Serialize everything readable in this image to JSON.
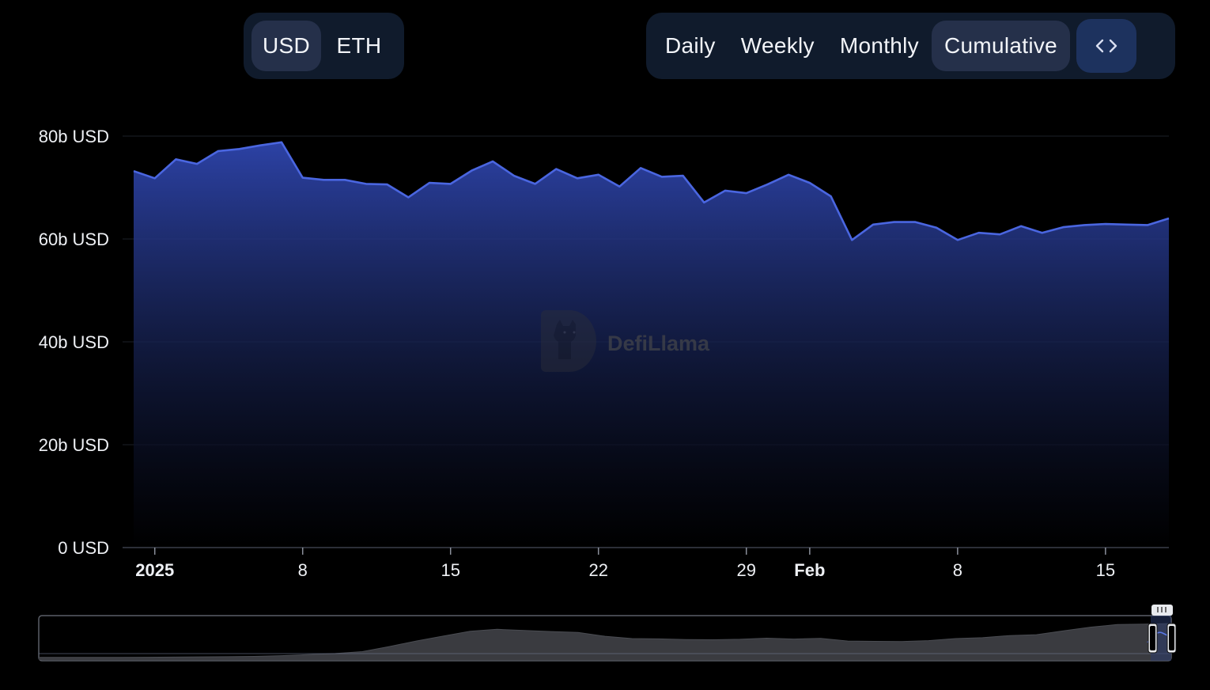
{
  "currency_toggle": {
    "options": [
      "USD",
      "ETH"
    ],
    "selected": "USD"
  },
  "period_toggle": {
    "options": [
      "Daily",
      "Weekly",
      "Monthly",
      "Cumulative"
    ],
    "selected": "Cumulative",
    "embed_icon": "code-brackets-icon"
  },
  "watermark": "DefiLlama",
  "colors": {
    "line": "#4a66e0",
    "fill_top": "#2d43a8",
    "fill_bottom": "#000000",
    "panel": "#101b2c",
    "active": "#25304a",
    "embed": "#1d325e"
  },
  "chart_data": {
    "type": "area",
    "title": "",
    "xlabel": "",
    "ylabel": "",
    "y_unit": "USD",
    "y_ticks": [
      "0 USD",
      "20b USD",
      "40b USD",
      "60b USD",
      "80b USD"
    ],
    "ylim": [
      0,
      80
    ],
    "x_ticks": [
      {
        "label": "2025",
        "date": "2025-01-01",
        "bold": true
      },
      {
        "label": "8",
        "date": "2025-01-08",
        "bold": false
      },
      {
        "label": "15",
        "date": "2025-01-15",
        "bold": false
      },
      {
        "label": "22",
        "date": "2025-01-22",
        "bold": false
      },
      {
        "label": "29",
        "date": "2025-01-29",
        "bold": false
      },
      {
        "label": "Feb",
        "date": "2025-02-01",
        "bold": true
      },
      {
        "label": "8",
        "date": "2025-02-08",
        "bold": false
      },
      {
        "label": "15",
        "date": "2025-02-15",
        "bold": false
      }
    ],
    "grid": true,
    "series": [
      {
        "values_unit": "billion USD",
        "x": [
          "2024-12-31",
          "2025-01-01",
          "2025-01-02",
          "2025-01-03",
          "2025-01-04",
          "2025-01-05",
          "2025-01-06",
          "2025-01-07",
          "2025-01-08",
          "2025-01-09",
          "2025-01-10",
          "2025-01-11",
          "2025-01-12",
          "2025-01-13",
          "2025-01-14",
          "2025-01-15",
          "2025-01-16",
          "2025-01-17",
          "2025-01-18",
          "2025-01-19",
          "2025-01-20",
          "2025-01-21",
          "2025-01-22",
          "2025-01-23",
          "2025-01-24",
          "2025-01-25",
          "2025-01-26",
          "2025-01-27",
          "2025-01-28",
          "2025-01-29",
          "2025-01-30",
          "2025-01-31",
          "2025-02-01",
          "2025-02-02",
          "2025-02-03",
          "2025-02-04",
          "2025-02-05",
          "2025-02-06",
          "2025-02-07",
          "2025-02-08",
          "2025-02-09",
          "2025-02-10",
          "2025-02-11",
          "2025-02-12",
          "2025-02-13",
          "2025-02-14",
          "2025-02-15",
          "2025-02-16",
          "2025-02-17",
          "2025-02-18"
        ],
        "values": [
          73.2,
          71.8,
          75.5,
          74.6,
          77.1,
          77.5,
          78.2,
          78.8,
          71.9,
          71.5,
          71.5,
          70.7,
          70.6,
          68.1,
          70.9,
          70.7,
          73.3,
          75.1,
          72.3,
          70.7,
          73.6,
          71.8,
          72.5,
          70.2,
          73.8,
          72.1,
          72.3,
          67.1,
          69.4,
          68.9,
          70.6,
          72.5,
          70.9,
          68.3,
          59.8,
          62.8,
          63.3,
          63.3,
          62.2,
          59.8,
          61.2,
          60.9,
          62.5,
          61.2,
          62.3,
          62.7,
          62.9,
          62.8,
          62.7,
          64.0
        ]
      }
    ],
    "range_selector": {
      "type": "area",
      "values": [
        1.0,
        1.0,
        1.0,
        1.0,
        1.1,
        1.2,
        1.3,
        1.4,
        1.6,
        2.0,
        2.6,
        3.2,
        4.3,
        7.2,
        10.4,
        13.2,
        16.0,
        17.1,
        16.4,
        15.8,
        15.3,
        13.1,
        11.8,
        11.6,
        11.2,
        11.1,
        11.4,
        12.0,
        11.5,
        11.9,
        10.4,
        10.2,
        10.1,
        10.6,
        11.8,
        12.3,
        13.5,
        14.0,
        16.2,
        18.3,
        19.8,
        20.1,
        20.4
      ]
    }
  }
}
